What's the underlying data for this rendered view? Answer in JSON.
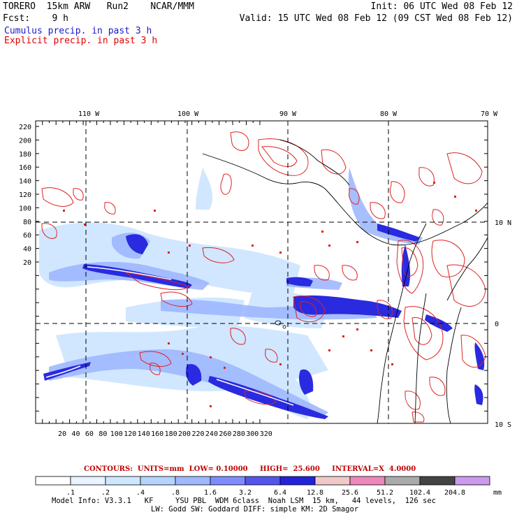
{
  "header": {
    "line1_left": "TORERO  15km ARW   Run2    NCAR/MMM",
    "line1_right": "Init: 06 UTC Wed 08 Feb 12",
    "line2_left": "Fcst:    9 h",
    "line2_right": "Valid: 15 UTC Wed 08 Feb 12 (09 CST Wed 08 Feb 12)"
  },
  "legend": {
    "cumulus": "Cumulus precip. in past 3 h",
    "explicit": "Explicit precip. in past 3 h",
    "cumulus_color": "#1a1acc",
    "explicit_color": "#dd0000"
  },
  "map": {
    "top_lon_labels": [
      "110 W",
      "100 W",
      "90 W",
      "80 W",
      "70 W"
    ],
    "right_lat_labels": [
      "10 N",
      "0",
      "10 S"
    ],
    "y_grid_labels": [
      "220",
      "200",
      "180",
      "160",
      "140",
      "120",
      "100",
      "80",
      "60",
      "40",
      "20"
    ],
    "x_grid_labels": [
      "20",
      "40",
      "60",
      "80",
      "100",
      "120",
      "140",
      "160",
      "180",
      "200",
      "220",
      "240",
      "260",
      "280",
      "300",
      "320"
    ]
  },
  "contour_info": "CONTOURS:  UNITS=mm  LOW= 0.10000     HIGH=  25.600     INTERVAL=X  4.0000",
  "colorbar": {
    "thresholds": [
      ".1",
      ".2",
      ".4",
      ".8",
      "1.6",
      "3.2",
      "6.4",
      "12.8",
      "25.6",
      "51.2",
      "102.4",
      "204.8"
    ],
    "colors": [
      "#ffffff",
      "#e8f4ff",
      "#cfe6ff",
      "#b4d4ff",
      "#9fb8ff",
      "#7f8cff",
      "#5555ee",
      "#2222dd",
      "#f0c8c8",
      "#ee88bb",
      "#aaaaaa",
      "#444444",
      "#cc99ee"
    ],
    "unit": "mm"
  },
  "model_info": {
    "line1": "Model Info: V3.3.1   KF     YSU PBL  WDM 6class  Noah LSM  15 km,   44 levels,  126 sec",
    "line2": "LW: Godd SW: Goddard DIFF: simple KM: 2D Smagor"
  }
}
